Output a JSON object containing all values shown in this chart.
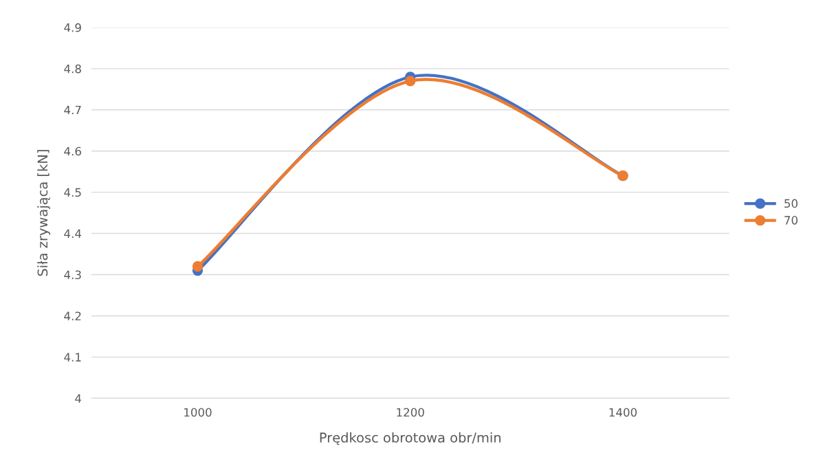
{
  "chart_data": {
    "type": "line",
    "xlabel": "Prędkosc obrotowa obr/min",
    "ylabel": "Siła zrywająca [kN]",
    "categories": [
      "1000",
      "1200",
      "1400"
    ],
    "series": [
      {
        "name": "50",
        "color": "#4472c4",
        "values": [
          4.31,
          4.78,
          4.54
        ]
      },
      {
        "name": "70",
        "color": "#ed7d31",
        "values": [
          4.32,
          4.77,
          4.54
        ]
      }
    ],
    "ylim": [
      4,
      4.9
    ],
    "yticks": [
      {
        "value": 4,
        "label": "4"
      },
      4.1,
      4.2,
      4.3,
      4.4,
      4.5,
      4.6,
      4.7,
      4.8,
      4.9
    ],
    "grid": "y",
    "legend": "right",
    "marker": "circle",
    "line_style": "solid"
  }
}
